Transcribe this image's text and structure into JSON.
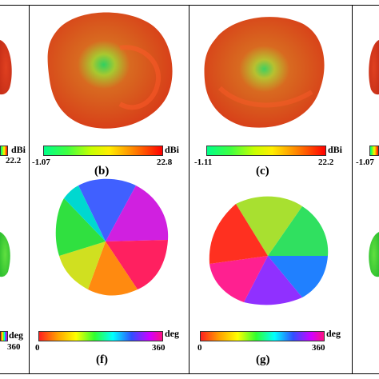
{
  "colors": {
    "gain_high": "#e83a1a",
    "gain_mid": "#d8a020",
    "gain_low": "#40e060",
    "border": "#000000"
  },
  "panels": [
    {
      "id": "a",
      "gain_min": "",
      "gain_max": "22.2",
      "gain_unit": "dBi",
      "phase_min": "",
      "phase_max": "360",
      "phase_unit": "deg",
      "label": ""
    },
    {
      "id": "b",
      "gain_min": "-1.07",
      "gain_max": "22.8",
      "gain_unit": "dBi",
      "label": "(b)"
    },
    {
      "id": "c",
      "gain_min": "-1.11",
      "gain_max": "22.2",
      "gain_unit": "dBi",
      "label": "(c)"
    },
    {
      "id": "d",
      "gain_min": "-1.07",
      "label": ""
    },
    {
      "id": "f",
      "phase_min": "0",
      "phase_max": "360",
      "phase_unit": "deg",
      "label": "(f)"
    },
    {
      "id": "g",
      "phase_min": "0",
      "phase_max": "360",
      "phase_unit": "deg",
      "label": "(g)"
    }
  ]
}
